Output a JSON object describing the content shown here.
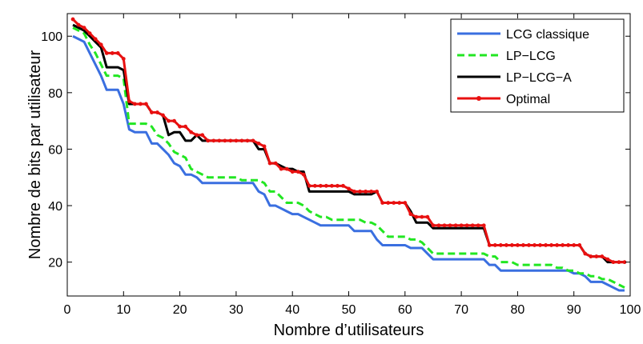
{
  "chart_data": {
    "type": "line",
    "title": "",
    "xlabel": "Nombre d’utilisateurs",
    "ylabel": "Nombre de bits par utilisateur",
    "xlim": [
      0,
      100
    ],
    "ylim": [
      8,
      108
    ],
    "xticks": [
      0,
      10,
      20,
      30,
      40,
      50,
      60,
      70,
      80,
      90,
      100
    ],
    "yticks": [
      20,
      40,
      60,
      80,
      100
    ],
    "grid": false,
    "legend_position": "top-right",
    "x": [
      1,
      2,
      3,
      4,
      5,
      6,
      7,
      8,
      9,
      10,
      11,
      12,
      13,
      14,
      15,
      16,
      17,
      18,
      19,
      20,
      21,
      22,
      23,
      24,
      25,
      26,
      27,
      28,
      29,
      30,
      31,
      32,
      33,
      34,
      35,
      36,
      37,
      38,
      39,
      40,
      41,
      42,
      43,
      44,
      45,
      46,
      47,
      48,
      49,
      50,
      51,
      52,
      53,
      54,
      55,
      56,
      57,
      58,
      59,
      60,
      61,
      62,
      63,
      64,
      65,
      66,
      67,
      68,
      69,
      70,
      71,
      72,
      73,
      74,
      75,
      76,
      77,
      78,
      79,
      80,
      81,
      82,
      83,
      84,
      85,
      86,
      87,
      88,
      89,
      90,
      91,
      92,
      93,
      94,
      95,
      96,
      97,
      98,
      99
    ],
    "series": [
      {
        "name": "LCG classique",
        "color": "#3a6fe0",
        "dash": "solid",
        "markers": false,
        "values": [
          100,
          99,
          98,
          94,
          90,
          86,
          81,
          81,
          81,
          76,
          67,
          66,
          66,
          66,
          62,
          62,
          60,
          58,
          55,
          54,
          51,
          51,
          50,
          48,
          48,
          48,
          48,
          48,
          48,
          48,
          48,
          48,
          48,
          45,
          44,
          40,
          40,
          39,
          38,
          37,
          37,
          36,
          35,
          34,
          33,
          33,
          33,
          33,
          33,
          33,
          31,
          31,
          31,
          31,
          28,
          26,
          26,
          26,
          26,
          26,
          25,
          25,
          25,
          23,
          21,
          21,
          21,
          21,
          21,
          21,
          21,
          21,
          21,
          21,
          19,
          19,
          17,
          17,
          17,
          17,
          17,
          17,
          17,
          17,
          17,
          17,
          17,
          17,
          17,
          16,
          16,
          15,
          13,
          13,
          13,
          12,
          11,
          10,
          10
        ]
      },
      {
        "name": "LP−LCG",
        "color": "#22e622",
        "dash": "dashed",
        "markers": false,
        "values": [
          103,
          102,
          101,
          97,
          94,
          90,
          86,
          86,
          86,
          85,
          69,
          69,
          69,
          69,
          68,
          65,
          64,
          62,
          59,
          58,
          57,
          53,
          52,
          51,
          50,
          50,
          50,
          50,
          50,
          50,
          49,
          49,
          49,
          49,
          48,
          45,
          45,
          43,
          41,
          41,
          41,
          40,
          38,
          37,
          36,
          36,
          35,
          35,
          35,
          35,
          35,
          35,
          34,
          34,
          33,
          31,
          29,
          29,
          29,
          29,
          28,
          28,
          27,
          25,
          23,
          23,
          23,
          23,
          23,
          23,
          23,
          23,
          23,
          23,
          22,
          22,
          20,
          20,
          20,
          19,
          19,
          19,
          19,
          19,
          19,
          19,
          18,
          18,
          17,
          17,
          16,
          16,
          15,
          15,
          14,
          14,
          13,
          12,
          11
        ]
      },
      {
        "name": "LP−LCG−A",
        "color": "#000000",
        "dash": "solid",
        "markers": false,
        "values": [
          104,
          103,
          102,
          100,
          98,
          96,
          89,
          89,
          89,
          88,
          76,
          76,
          76,
          76,
          73,
          73,
          72,
          65,
          66,
          66,
          63,
          63,
          65,
          63,
          63,
          63,
          63,
          63,
          63,
          63,
          63,
          63,
          63,
          60,
          60,
          55,
          55,
          54,
          53,
          53,
          52,
          52,
          45,
          45,
          45,
          45,
          45,
          45,
          45,
          45,
          44,
          44,
          44,
          44,
          45,
          41,
          41,
          41,
          41,
          41,
          38,
          34,
          34,
          34,
          32,
          32,
          32,
          32,
          32,
          32,
          32,
          32,
          32,
          32,
          26,
          26,
          26,
          26,
          26,
          26,
          26,
          26,
          26,
          26,
          26,
          26,
          26,
          26,
          26,
          26,
          26,
          23,
          22,
          22,
          22,
          20,
          20,
          20,
          20
        ]
      },
      {
        "name": "Optimal",
        "color": "#e81010",
        "dash": "solid",
        "markers": true,
        "values": [
          106,
          104,
          103,
          101,
          99,
          97,
          94,
          94,
          94,
          92,
          77,
          76,
          76,
          76,
          73,
          73,
          72,
          70,
          70,
          68,
          68,
          66,
          65,
          65,
          63,
          63,
          63,
          63,
          63,
          63,
          63,
          63,
          63,
          62,
          61,
          55,
          55,
          53,
          53,
          52,
          52,
          51,
          47,
          47,
          47,
          47,
          47,
          47,
          47,
          46,
          45,
          45,
          45,
          45,
          45,
          41,
          41,
          41,
          41,
          41,
          37,
          36,
          36,
          36,
          33,
          33,
          33,
          33,
          33,
          33,
          33,
          33,
          33,
          33,
          26,
          26,
          26,
          26,
          26,
          26,
          26,
          26,
          26,
          26,
          26,
          26,
          26,
          26,
          26,
          26,
          26,
          23,
          22,
          22,
          22,
          21,
          20,
          20,
          20
        ]
      }
    ]
  }
}
